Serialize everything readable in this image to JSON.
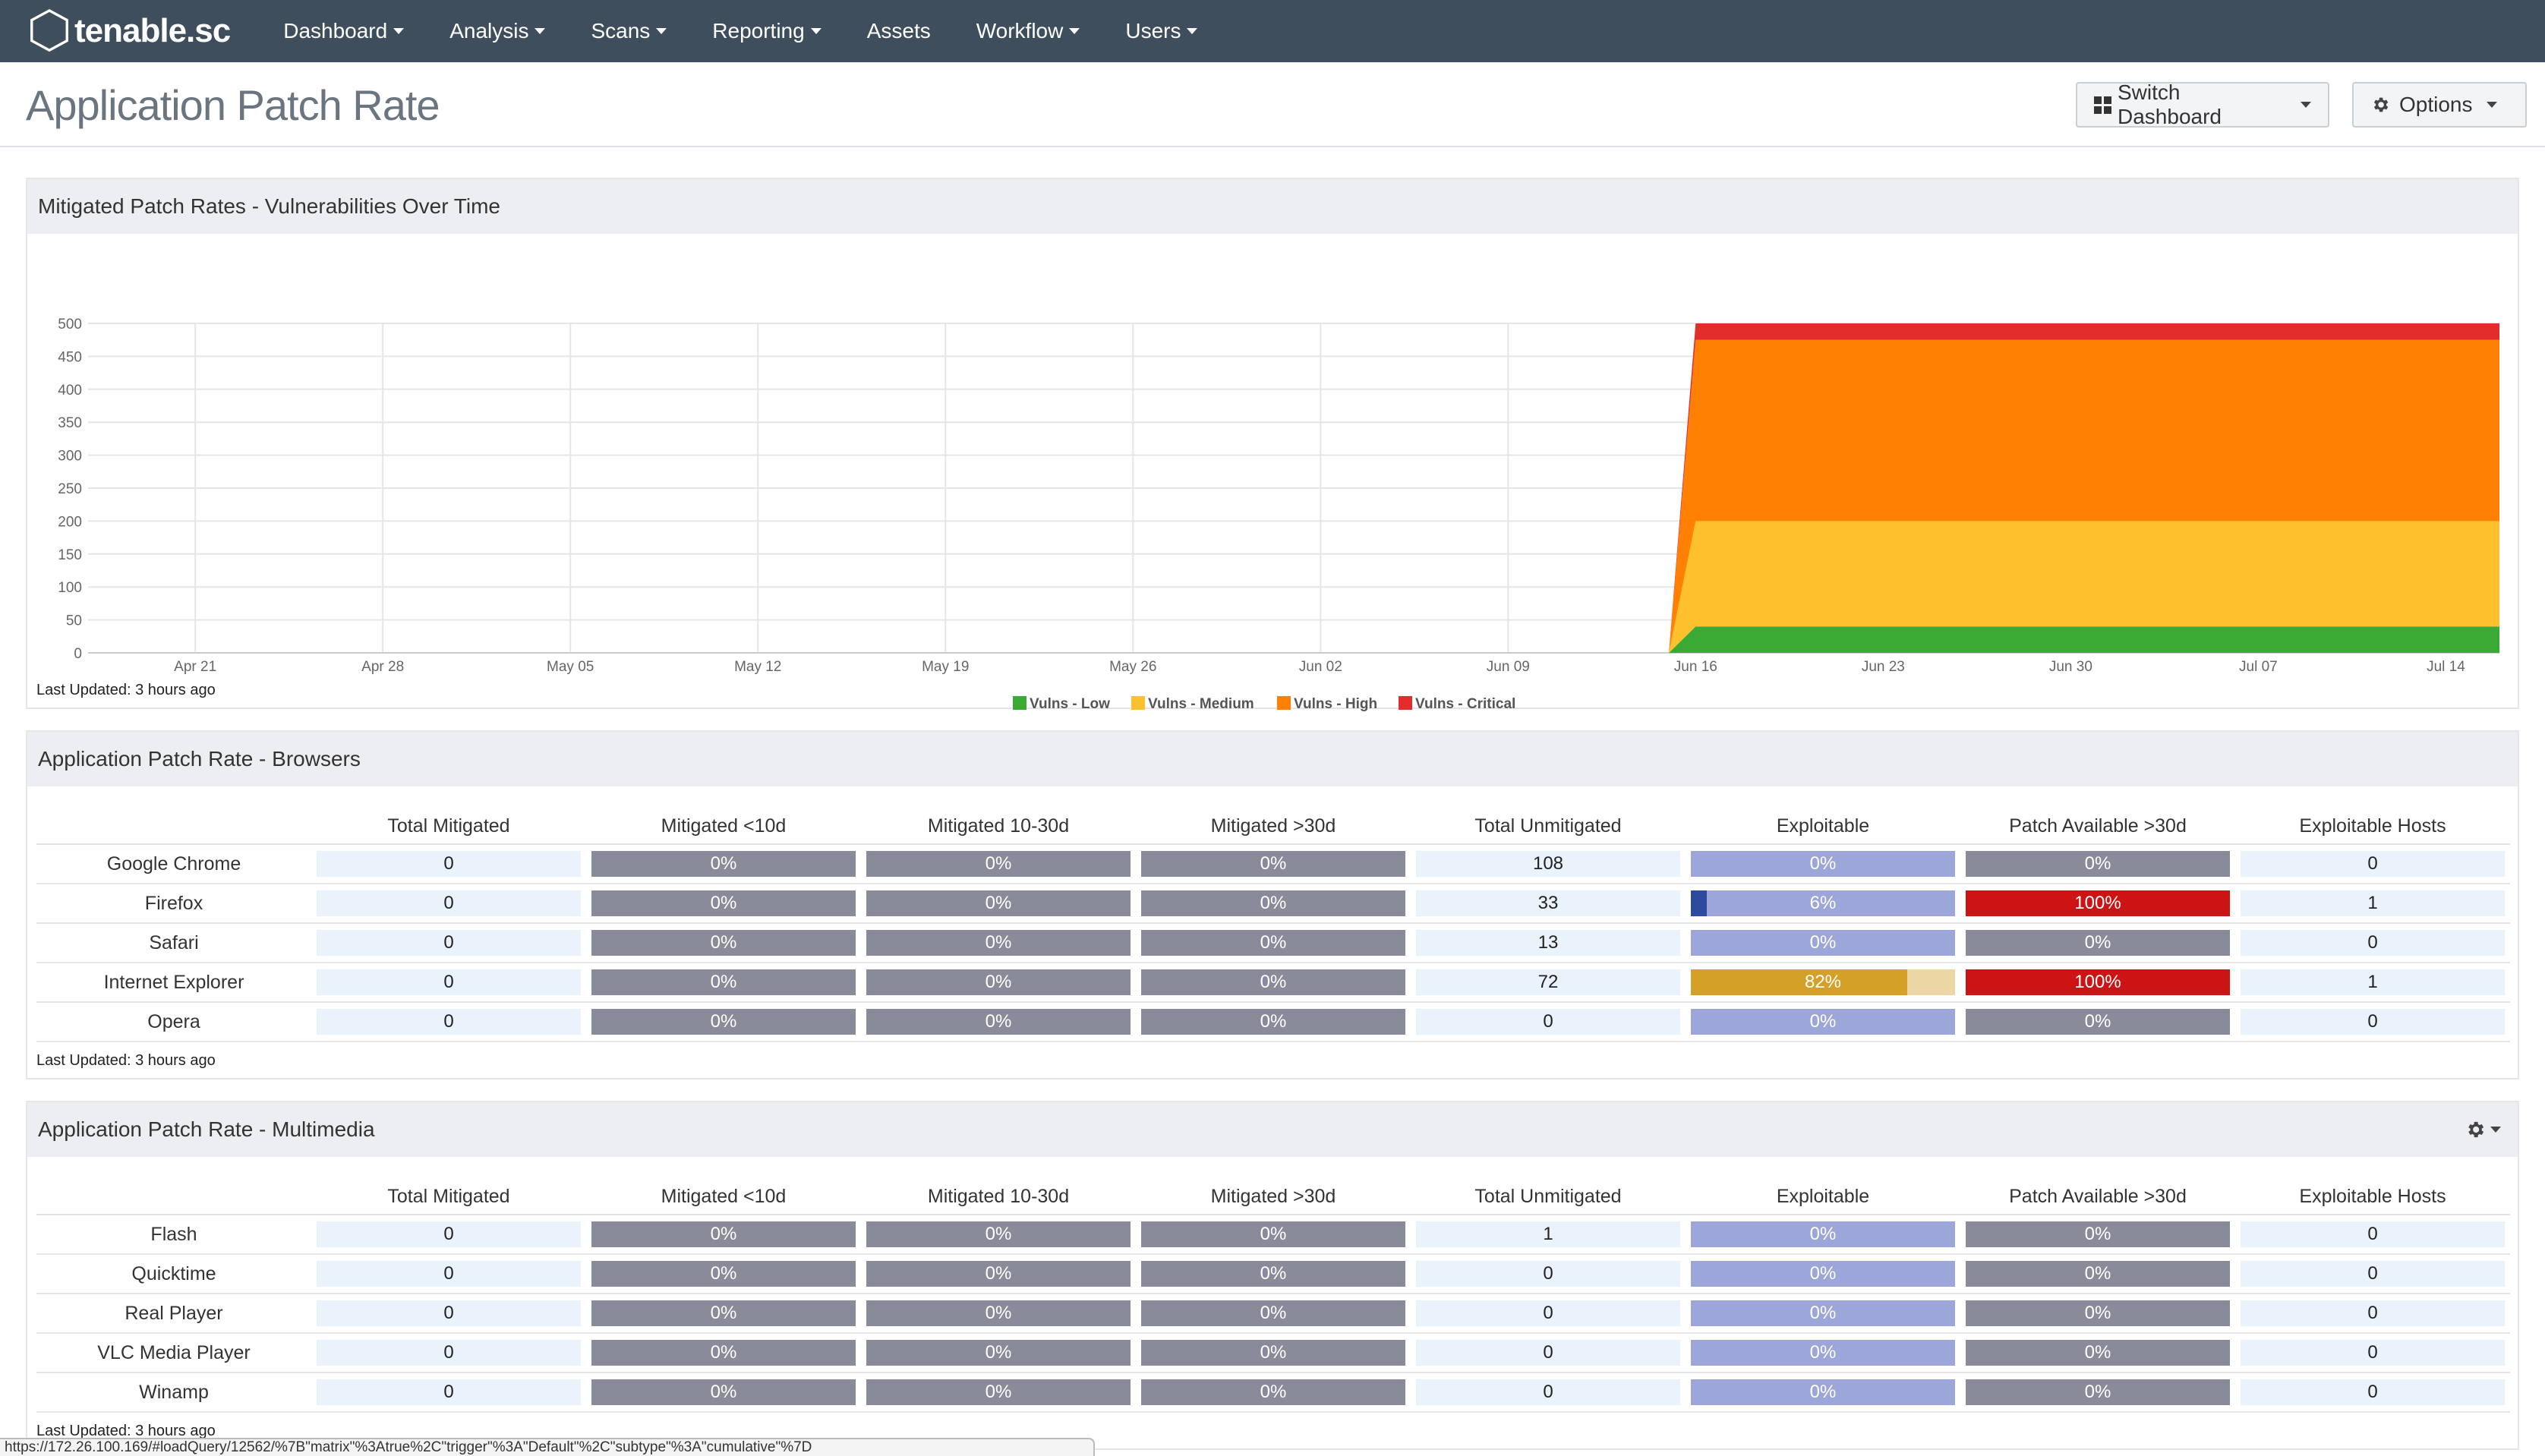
{
  "nav": {
    "brand": "tenable.sc",
    "items": [
      {
        "label": "Dashboard",
        "caret": true
      },
      {
        "label": "Analysis",
        "caret": true
      },
      {
        "label": "Scans",
        "caret": true
      },
      {
        "label": "Reporting",
        "caret": true
      },
      {
        "label": "Assets",
        "caret": false
      },
      {
        "label": "Workflow",
        "caret": true
      },
      {
        "label": "Users",
        "caret": true
      }
    ]
  },
  "header": {
    "title": "Application Patch Rate",
    "switch_dashboard": "Switch Dashboard",
    "options": "Options"
  },
  "colors": {
    "low": "#3aaa35",
    "medium": "#fcc12c",
    "high": "#ff8002",
    "critical": "#e32d2d",
    "navbar": "#3f4e5c"
  },
  "chart_panel": {
    "title": "Mitigated Patch Rates - Vulnerabilities Over Time",
    "footer": "Last Updated: 3 hours ago"
  },
  "chart_data": {
    "type": "area",
    "stacked": true,
    "title": "",
    "xlabel": "",
    "ylabel": "",
    "ylim": [
      0,
      500
    ],
    "yticks": [
      0,
      50,
      100,
      150,
      200,
      250,
      300,
      350,
      400,
      450,
      500
    ],
    "x_ticks": [
      "Apr 21",
      "Apr 28",
      "May 05",
      "May 12",
      "May 19",
      "May 26",
      "Jun 02",
      "Jun 09",
      "Jun 16",
      "Jun 23",
      "Jun 30",
      "Jul 07",
      "Jul 14"
    ],
    "x_start": "Apr 17",
    "x_end": "Jul 16",
    "x": [
      "Apr 17",
      "Jun 15",
      "Jun 16",
      "Jul 16"
    ],
    "legend_position": "bottom",
    "grid": true,
    "series": [
      {
        "name": "Vulns - Low",
        "color": "#3aaa35",
        "values": [
          0,
          0,
          40,
          40
        ]
      },
      {
        "name": "Vulns - Medium",
        "color": "#fcc12c",
        "values": [
          0,
          0,
          160,
          160
        ]
      },
      {
        "name": "Vulns - High",
        "color": "#ff8002",
        "values": [
          0,
          0,
          275,
          275
        ]
      },
      {
        "name": "Vulns - Critical",
        "color": "#e32d2d",
        "values": [
          0,
          0,
          25,
          25
        ]
      }
    ]
  },
  "columns": [
    "Total Mitigated",
    "Mitigated <10d",
    "Mitigated 10-30d",
    "Mitigated >30d",
    "Total Unmitigated",
    "Exploitable",
    "Patch Available >30d",
    "Exploitable Hosts"
  ],
  "browsers": {
    "title": "Application Patch Rate - Browsers",
    "footer": "Last Updated: 3 hours ago",
    "rows": [
      {
        "name": "Google Chrome",
        "total_mitigated": "0",
        "m10": "0%",
        "m1030": "0%",
        "m30": "0%",
        "unmitigated": "108",
        "exploitable": "0%",
        "exploitable_pct": 0,
        "patch30": "0%",
        "patch30_pct": 0,
        "hosts": "0"
      },
      {
        "name": "Firefox",
        "total_mitigated": "0",
        "m10": "0%",
        "m1030": "0%",
        "m30": "0%",
        "unmitigated": "33",
        "exploitable": "6%",
        "exploitable_pct": 6,
        "patch30": "100%",
        "patch30_pct": 100,
        "hosts": "1"
      },
      {
        "name": "Safari",
        "total_mitigated": "0",
        "m10": "0%",
        "m1030": "0%",
        "m30": "0%",
        "unmitigated": "13",
        "exploitable": "0%",
        "exploitable_pct": 0,
        "patch30": "0%",
        "patch30_pct": 0,
        "hosts": "0"
      },
      {
        "name": "Internet Explorer",
        "total_mitigated": "0",
        "m10": "0%",
        "m1030": "0%",
        "m30": "0%",
        "unmitigated": "72",
        "exploitable": "82%",
        "exploitable_pct": 82,
        "patch30": "100%",
        "patch30_pct": 100,
        "hosts": "1"
      },
      {
        "name": "Opera",
        "total_mitigated": "0",
        "m10": "0%",
        "m1030": "0%",
        "m30": "0%",
        "unmitigated": "0",
        "exploitable": "0%",
        "exploitable_pct": 0,
        "patch30": "0%",
        "patch30_pct": 0,
        "hosts": "0"
      }
    ]
  },
  "multimedia": {
    "title": "Application Patch Rate - Multimedia",
    "footer": "Last Updated: 3 hours ago",
    "rows": [
      {
        "name": "Flash",
        "total_mitigated": "0",
        "m10": "0%",
        "m1030": "0%",
        "m30": "0%",
        "unmitigated": "1",
        "exploitable": "0%",
        "exploitable_pct": 0,
        "patch30": "0%",
        "patch30_pct": 0,
        "hosts": "0"
      },
      {
        "name": "Quicktime",
        "total_mitigated": "0",
        "m10": "0%",
        "m1030": "0%",
        "m30": "0%",
        "unmitigated": "0",
        "exploitable": "0%",
        "exploitable_pct": 0,
        "patch30": "0%",
        "patch30_pct": 0,
        "hosts": "0"
      },
      {
        "name": "Real Player",
        "total_mitigated": "0",
        "m10": "0%",
        "m1030": "0%",
        "m30": "0%",
        "unmitigated": "0",
        "exploitable": "0%",
        "exploitable_pct": 0,
        "patch30": "0%",
        "patch30_pct": 0,
        "hosts": "0"
      },
      {
        "name": "VLC Media Player",
        "total_mitigated": "0",
        "m10": "0%",
        "m1030": "0%",
        "m30": "0%",
        "unmitigated": "0",
        "exploitable": "0%",
        "exploitable_pct": 0,
        "patch30": "0%",
        "patch30_pct": 0,
        "hosts": "0"
      },
      {
        "name": "Winamp",
        "total_mitigated": "0",
        "m10": "0%",
        "m1030": "0%",
        "m30": "0%",
        "unmitigated": "0",
        "exploitable": "0%",
        "exploitable_pct": 0,
        "patch30": "0%",
        "patch30_pct": 0,
        "hosts": "0"
      }
    ]
  },
  "statusbar": {
    "url": "https://172.26.100.169/#loadQuery/12562/%7B\"matrix\"%3Atrue%2C\"trigger\"%3A\"Default\"%2C\"subtype\"%3A\"cumulative\"%7D"
  },
  "icons": {
    "brand": "hexagon-logo-icon",
    "switch": "grid-icon",
    "options": "gear-icon",
    "panel_menu": "gear-icon"
  }
}
